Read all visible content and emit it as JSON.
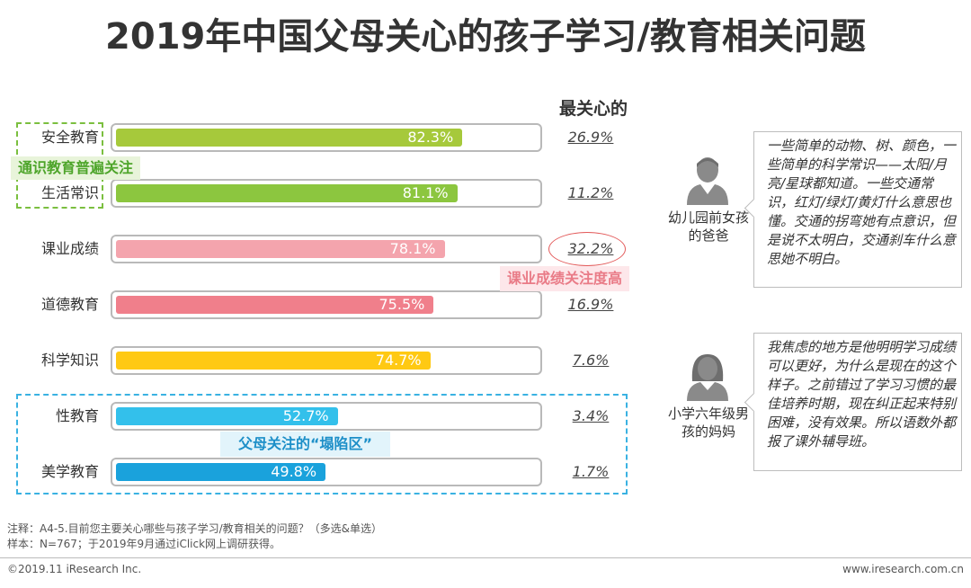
{
  "title": "2019年中国父母关心的孩子学习/教育相关问题",
  "chart_data": {
    "type": "bar",
    "orientation": "horizontal",
    "categories": [
      "安全教育",
      "生活常识",
      "课业成绩",
      "道德教育",
      "科学知识",
      "性教育",
      "美学教育"
    ],
    "values": [
      82.3,
      81.1,
      78.1,
      75.5,
      74.7,
      52.7,
      49.8
    ],
    "value_labels": [
      "82.3%",
      "81.1%",
      "78.1%",
      "75.5%",
      "74.7%",
      "52.7%",
      "49.8%"
    ],
    "most_concerned_header": "最关心的",
    "most_concerned": [
      "26.9%",
      "11.2%",
      "32.2%",
      "16.9%",
      "7.6%",
      "3.4%",
      "1.7%"
    ],
    "colors": [
      "#a6c93b",
      "#8cc63f",
      "#f4a4ad",
      "#f07f8b",
      "#ffc913",
      "#33c0eb",
      "#1aa2dc"
    ],
    "xlim": [
      0,
      100
    ],
    "annotations": {
      "green_note": "通识教育普遍关注",
      "pink_note": "课业成绩关注度高",
      "blue_note": "父母关注的“塌陷区”"
    }
  },
  "quotes": [
    {
      "person": "幼儿园前女孩的爸爸",
      "icon": "male-avatar-icon",
      "text": "一些简单的动物、树、颜色，一些简单的科学常识——太阳/月亮/星球都知道。一些交通常识，红灯/绿灯/黄灯什么意思也懂。交通的拐弯她有点意识，但是说不太明白，交通刹车什么意思她不明白。"
    },
    {
      "person": "小学六年级男孩的妈妈",
      "icon": "female-avatar-icon",
      "text": "我焦虑的地方是他明明学习成绩可以更好，为什么是现在的这个样子。之前错过了学习习惯的最佳培养时期，现在纠正起来特别困难，没有效果。所以语数外都报了课外辅导班。"
    }
  ],
  "footnotes": {
    "note": "注释：A4-5.目前您主要关心哪些与孩子学习/教育相关的问题？（多选&单选）",
    "sample": "样本：N=767；于2019年9月通过iClick网上调研获得。"
  },
  "footer": {
    "copyright": "©2019.11 iResearch Inc.",
    "website": "www.iresearch.com.cn"
  }
}
